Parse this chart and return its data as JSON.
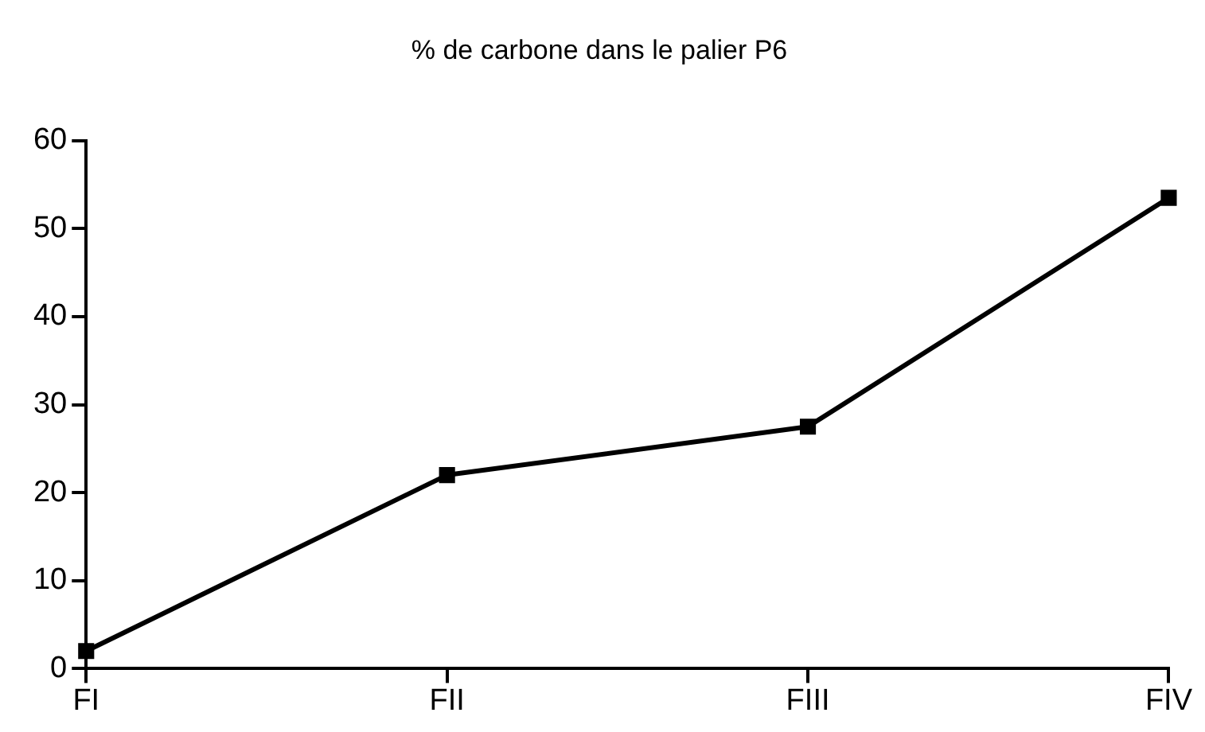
{
  "chart_data": {
    "type": "line",
    "title": "% de carbone dans le palier P6",
    "categories": [
      "FI",
      "FII",
      "FIII",
      "FIV"
    ],
    "series": [
      {
        "color": "#000000",
        "values": [
          2,
          22,
          27.5,
          53.5
        ]
      }
    ],
    "ylim": [
      0,
      60
    ],
    "yticks": [
      0,
      10,
      20,
      30,
      40,
      50,
      60
    ],
    "grid": false,
    "legend": false,
    "marker": "square",
    "line_style": "solid"
  }
}
